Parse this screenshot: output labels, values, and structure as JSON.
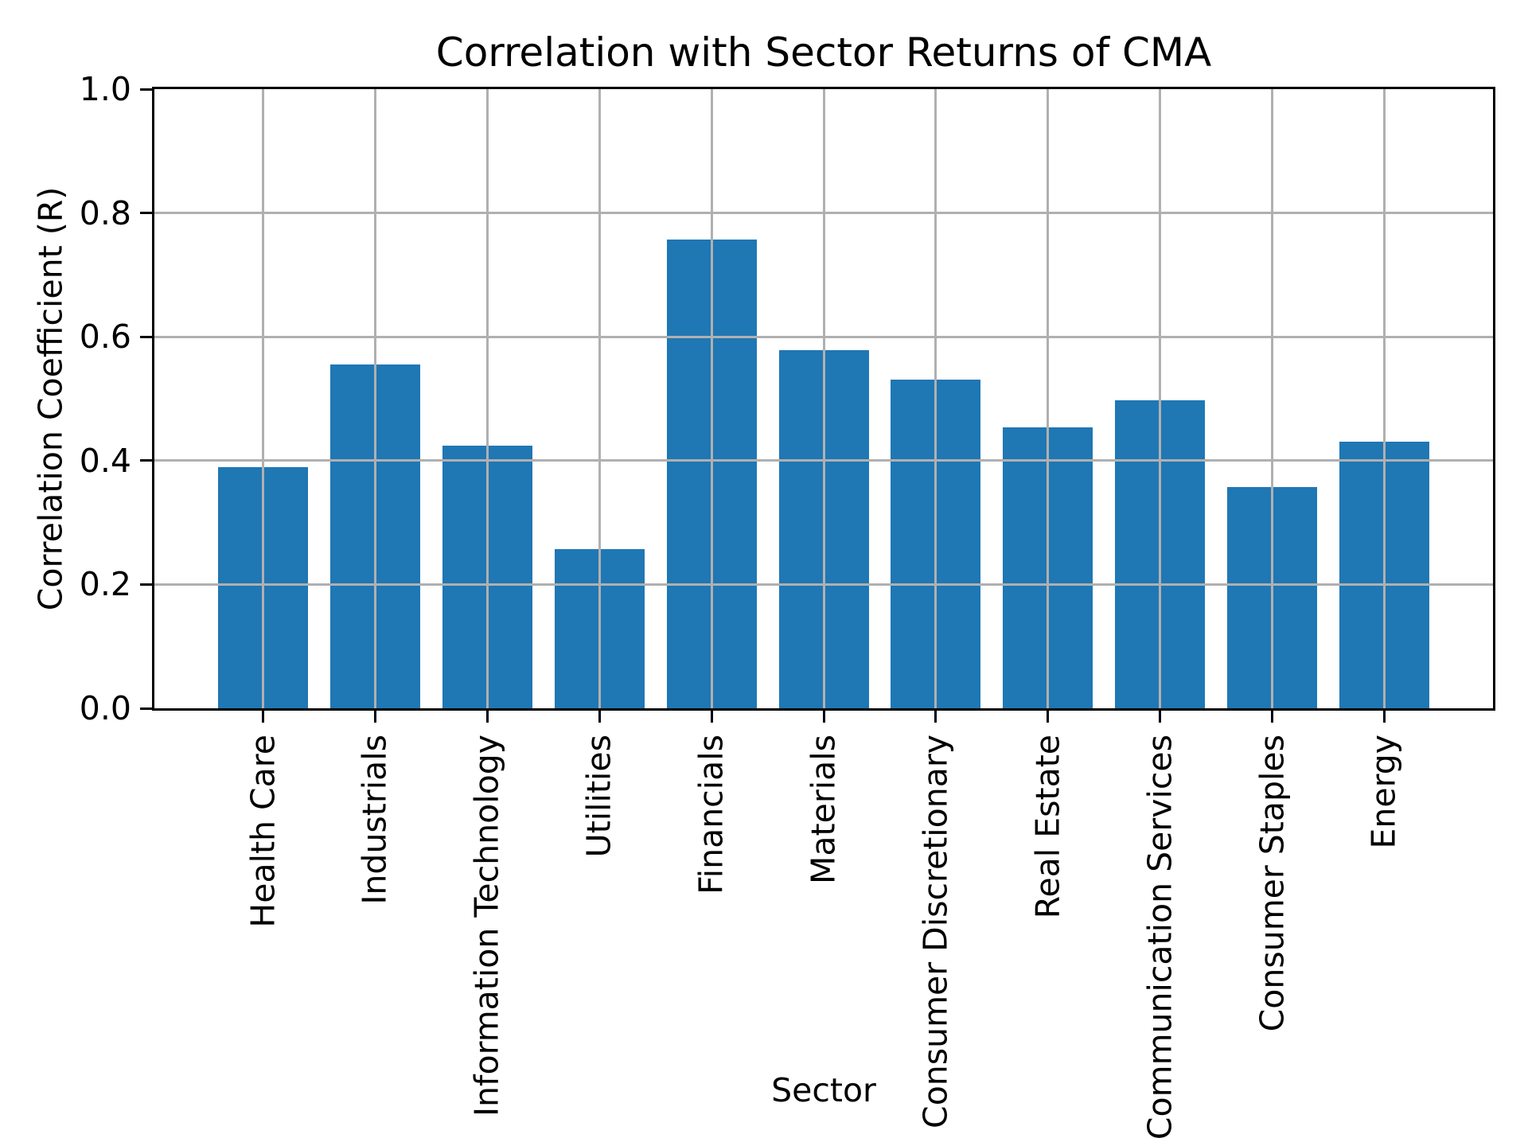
{
  "chart_data": {
    "type": "bar",
    "title": "Correlation with Sector Returns of CMA",
    "xlabel": "Sector",
    "ylabel": "Correlation Coefficient (R)",
    "categories": [
      "Health Care",
      "Industrials",
      "Information Technology",
      "Utilities",
      "Financials",
      "Materials",
      "Consumer Discretionary",
      "Real Estate",
      "Communication Services",
      "Consumer Staples",
      "Energy"
    ],
    "values": [
      0.39,
      0.555,
      0.424,
      0.257,
      0.757,
      0.578,
      0.531,
      0.454,
      0.498,
      0.357,
      0.431
    ],
    "ylim": [
      0.0,
      1.0
    ],
    "yticks": [
      0.0,
      0.2,
      0.4,
      0.6,
      0.8,
      1.0
    ],
    "ytick_labels": [
      "0.0",
      "0.2",
      "0.4",
      "0.6",
      "0.8",
      "1.0"
    ],
    "x_tick_rotation": 90,
    "grid": true,
    "grid_above_bars": true,
    "legend": null,
    "bar_color": "#1f77b4",
    "grid_color": "#b0b0b0",
    "axis_color": "#000000",
    "background_color": "#ffffff"
  }
}
